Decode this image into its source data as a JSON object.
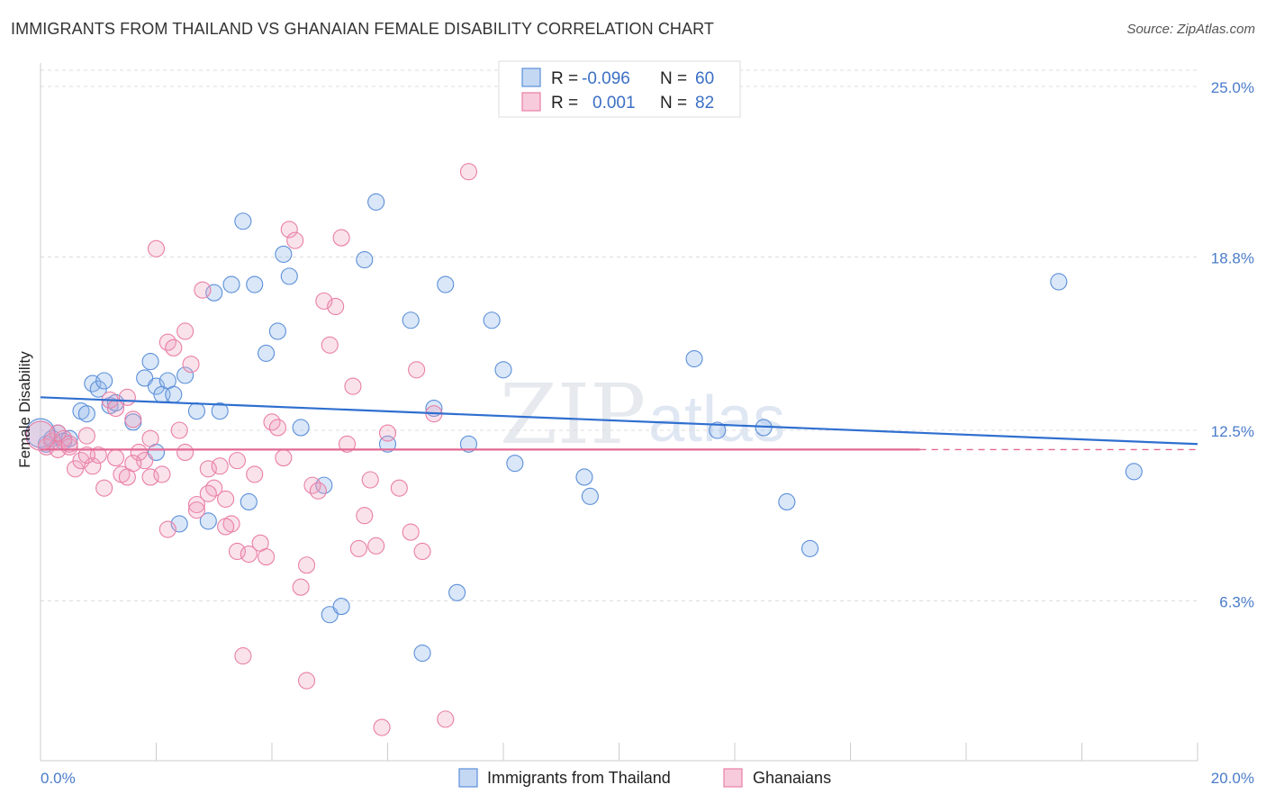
{
  "title": "IMMIGRANTS FROM THAILAND VS GHANAIAN FEMALE DISABILITY CORRELATION CHART",
  "source": "Source: ZipAtlas.com",
  "watermark": {
    "zip": "ZIP",
    "atlas": "atlas"
  },
  "legend_stats": [
    {
      "r_label": "R =",
      "r_value": "-0.096",
      "n_label": "N =",
      "n_value": "60"
    },
    {
      "r_label": "R =",
      "r_value": "0.001",
      "n_label": "N =",
      "n_value": "82"
    }
  ],
  "chart_data": {
    "type": "scatter",
    "ylabel": "Female Disability",
    "xlim": [
      0,
      20
    ],
    "ylim": [
      0,
      26.5
    ],
    "x_tick_labels": [
      "0.0%",
      "20.0%"
    ],
    "y_ticks": [
      {
        "value": 6.3,
        "label": "6.3%"
      },
      {
        "value": 12.5,
        "label": "12.5%"
      },
      {
        "value": 18.8,
        "label": "18.8%"
      },
      {
        "value": 25.0,
        "label": "25.0%"
      }
    ],
    "grid": true,
    "legend_position": "top-center",
    "colors": {
      "thailand": "#5b8fd9",
      "ghanaian": "#e97fa5",
      "thailand_line": "#2f6fd0",
      "ghanaian_line": "#e36894"
    },
    "series": [
      {
        "name": "Immigrants from Thailand",
        "color": "#5b8fd9",
        "trend": {
          "x0": 0,
          "y0": 13.7,
          "x1": 20,
          "y1": 12.0
        },
        "points": [
          [
            0.1,
            12.0,
            9
          ],
          [
            0.2,
            12.2,
            9
          ],
          [
            0.3,
            12.4,
            9
          ],
          [
            0.4,
            12.1,
            9
          ],
          [
            0.5,
            12.2,
            9
          ],
          [
            0.7,
            13.2,
            9
          ],
          [
            0.8,
            13.1,
            9
          ],
          [
            0.9,
            14.2,
            9
          ],
          [
            1.0,
            14.0,
            9
          ],
          [
            1.2,
            13.4,
            9
          ],
          [
            1.1,
            14.3,
            9
          ],
          [
            1.3,
            13.5,
            9
          ],
          [
            1.6,
            12.8,
            9
          ],
          [
            1.9,
            15.0,
            9
          ],
          [
            1.8,
            14.4,
            9
          ],
          [
            2.0,
            14.1,
            9
          ],
          [
            2.1,
            13.8,
            9
          ],
          [
            2.2,
            14.3,
            9
          ],
          [
            2.3,
            13.8,
            9
          ],
          [
            2.5,
            14.5,
            9
          ],
          [
            2.7,
            13.2,
            9
          ],
          [
            3.1,
            13.2,
            9
          ],
          [
            3.0,
            17.5,
            9
          ],
          [
            3.3,
            17.8,
            9
          ],
          [
            3.5,
            20.1,
            9
          ],
          [
            3.7,
            17.8,
            9
          ],
          [
            3.9,
            15.3,
            9
          ],
          [
            4.1,
            16.1,
            9
          ],
          [
            4.2,
            18.9,
            9
          ],
          [
            4.3,
            18.1,
            9
          ],
          [
            4.5,
            12.6,
            9
          ],
          [
            4.9,
            10.5,
            9
          ],
          [
            5.0,
            5.8,
            9
          ],
          [
            5.2,
            6.1,
            9
          ],
          [
            5.6,
            18.7,
            9
          ],
          [
            5.8,
            20.8,
            9
          ],
          [
            6.0,
            12.0,
            9
          ],
          [
            6.4,
            16.5,
            9
          ],
          [
            6.6,
            4.4,
            9
          ],
          [
            6.8,
            13.3,
            9
          ],
          [
            7.0,
            17.8,
            9
          ],
          [
            7.2,
            6.6,
            9
          ],
          [
            7.4,
            12.0,
            9
          ],
          [
            7.8,
            16.5,
            9
          ],
          [
            8.0,
            14.7,
            9
          ],
          [
            8.2,
            11.3,
            9
          ],
          [
            2.0,
            11.7,
            9
          ],
          [
            2.4,
            9.1,
            9
          ],
          [
            2.9,
            9.2,
            9
          ],
          [
            3.6,
            9.9,
            9
          ],
          [
            9.4,
            10.8,
            9
          ],
          [
            9.5,
            10.1,
            9
          ],
          [
            11.3,
            15.1,
            9
          ],
          [
            11.7,
            12.5,
            9
          ],
          [
            12.5,
            12.6,
            9
          ],
          [
            12.9,
            9.9,
            9
          ],
          [
            13.3,
            8.2,
            9
          ],
          [
            17.6,
            17.9,
            9
          ],
          [
            18.9,
            11.0,
            9
          ],
          [
            0.0,
            12.4,
            16
          ]
        ]
      },
      {
        "name": "Ghanaians",
        "color": "#e97fa5",
        "trend": {
          "x0": 0,
          "y0": 11.8,
          "x1": 15.2,
          "y1": 11.8,
          "dash_to": 20
        },
        "points": [
          [
            0.1,
            11.9,
            9
          ],
          [
            0.2,
            12.1,
            9
          ],
          [
            0.3,
            11.8,
            9
          ],
          [
            0.4,
            12.2,
            9
          ],
          [
            0.5,
            11.9,
            9
          ],
          [
            0.6,
            11.1,
            9
          ],
          [
            0.7,
            11.4,
            9
          ],
          [
            0.8,
            12.3,
            9
          ],
          [
            0.9,
            11.2,
            9
          ],
          [
            1.0,
            11.6,
            9
          ],
          [
            1.1,
            10.4,
            9
          ],
          [
            1.2,
            13.6,
            9
          ],
          [
            1.3,
            11.5,
            9
          ],
          [
            1.4,
            10.9,
            9
          ],
          [
            1.5,
            13.7,
            9
          ],
          [
            1.6,
            12.9,
            9
          ],
          [
            1.7,
            11.7,
            9
          ],
          [
            1.8,
            11.4,
            9
          ],
          [
            1.9,
            10.8,
            9
          ],
          [
            2.0,
            19.1,
            9
          ],
          [
            2.1,
            10.9,
            9
          ],
          [
            2.2,
            15.7,
            9
          ],
          [
            2.3,
            15.5,
            9
          ],
          [
            2.4,
            12.5,
            9
          ],
          [
            2.5,
            11.7,
            9
          ],
          [
            2.6,
            14.9,
            9
          ],
          [
            2.7,
            9.8,
            9
          ],
          [
            2.8,
            17.6,
            9
          ],
          [
            2.9,
            11.1,
            9
          ],
          [
            3.0,
            10.4,
            9
          ],
          [
            3.1,
            11.2,
            9
          ],
          [
            3.2,
            10.0,
            9
          ],
          [
            3.3,
            9.1,
            9
          ],
          [
            3.4,
            8.1,
            9
          ],
          [
            3.5,
            4.3,
            9
          ],
          [
            3.6,
            8.0,
            9
          ],
          [
            3.7,
            10.9,
            9
          ],
          [
            3.8,
            8.4,
            9
          ],
          [
            3.9,
            7.9,
            9
          ],
          [
            4.0,
            12.8,
            9
          ],
          [
            4.1,
            12.6,
            9
          ],
          [
            4.2,
            11.5,
            9
          ],
          [
            4.3,
            19.8,
            9
          ],
          [
            4.4,
            19.4,
            9
          ],
          [
            4.5,
            6.8,
            9
          ],
          [
            4.6,
            3.4,
            9
          ],
          [
            4.7,
            10.5,
            9
          ],
          [
            4.8,
            10.3,
            9
          ],
          [
            4.9,
            17.2,
            9
          ],
          [
            5.0,
            15.6,
            9
          ],
          [
            5.1,
            17.0,
            9
          ],
          [
            5.2,
            19.5,
            9
          ],
          [
            5.3,
            12.0,
            9
          ],
          [
            5.4,
            14.1,
            9
          ],
          [
            5.5,
            8.2,
            9
          ],
          [
            5.6,
            9.4,
            9
          ],
          [
            5.7,
            10.7,
            9
          ],
          [
            5.8,
            8.3,
            9
          ],
          [
            5.9,
            1.7,
            9
          ],
          [
            6.0,
            12.4,
            9
          ],
          [
            6.2,
            10.4,
            9
          ],
          [
            6.4,
            8.8,
            9
          ],
          [
            6.5,
            14.7,
            9
          ],
          [
            6.6,
            8.1,
            9
          ],
          [
            6.8,
            13.1,
            9
          ],
          [
            7.0,
            2.0,
            9
          ],
          [
            7.4,
            21.9,
            9
          ],
          [
            1.3,
            13.3,
            9
          ],
          [
            1.9,
            12.2,
            9
          ],
          [
            2.5,
            16.1,
            9
          ],
          [
            0.3,
            12.4,
            9
          ],
          [
            0.5,
            12.0,
            9
          ],
          [
            1.6,
            11.3,
            9
          ],
          [
            2.2,
            8.9,
            9
          ],
          [
            2.9,
            10.2,
            9
          ],
          [
            3.4,
            11.4,
            9
          ],
          [
            0.8,
            11.6,
            9
          ],
          [
            1.5,
            10.8,
            9
          ],
          [
            2.7,
            9.6,
            9
          ],
          [
            3.2,
            9.0,
            9
          ],
          [
            4.6,
            7.6,
            9
          ],
          [
            0.0,
            12.3,
            16
          ]
        ]
      }
    ]
  }
}
